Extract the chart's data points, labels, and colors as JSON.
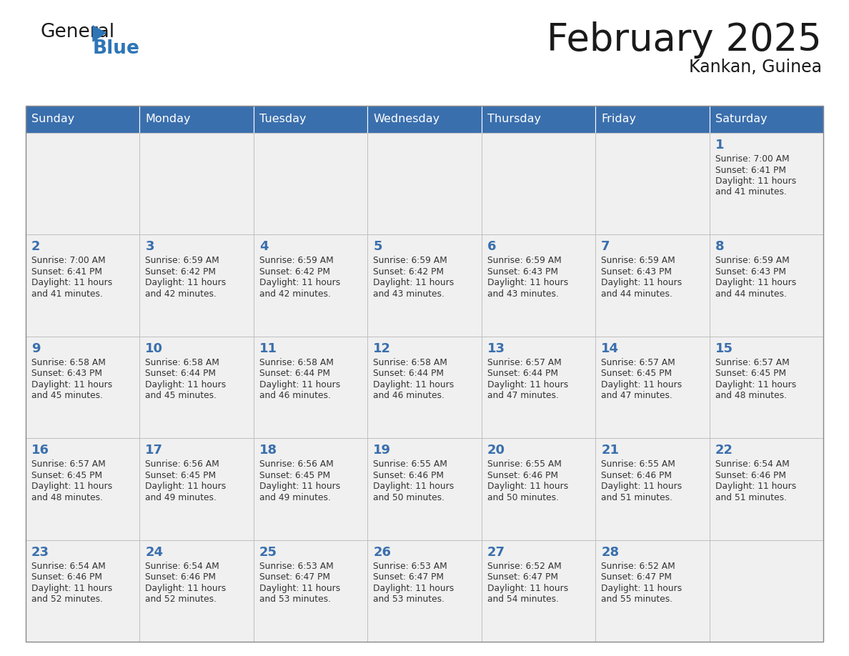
{
  "title": "February 2025",
  "subtitle": "Kankan, Guinea",
  "header_color": "#3a6fad",
  "header_text_color": "#ffffff",
  "cell_bg_color": "#f0f0f0",
  "day_number_color": "#3a6fad",
  "info_text_color": "#333333",
  "border_color": "#bbbbbb",
  "days_of_week": [
    "Sunday",
    "Monday",
    "Tuesday",
    "Wednesday",
    "Thursday",
    "Friday",
    "Saturday"
  ],
  "weeks": [
    [
      {
        "day": null,
        "sunrise": null,
        "sunset": null,
        "daylight": null
      },
      {
        "day": null,
        "sunrise": null,
        "sunset": null,
        "daylight": null
      },
      {
        "day": null,
        "sunrise": null,
        "sunset": null,
        "daylight": null
      },
      {
        "day": null,
        "sunrise": null,
        "sunset": null,
        "daylight": null
      },
      {
        "day": null,
        "sunrise": null,
        "sunset": null,
        "daylight": null
      },
      {
        "day": null,
        "sunrise": null,
        "sunset": null,
        "daylight": null
      },
      {
        "day": 1,
        "sunrise": "7:00 AM",
        "sunset": "6:41 PM",
        "daylight": "11 hours\nand 41 minutes."
      }
    ],
    [
      {
        "day": 2,
        "sunrise": "7:00 AM",
        "sunset": "6:41 PM",
        "daylight": "11 hours\nand 41 minutes."
      },
      {
        "day": 3,
        "sunrise": "6:59 AM",
        "sunset": "6:42 PM",
        "daylight": "11 hours\nand 42 minutes."
      },
      {
        "day": 4,
        "sunrise": "6:59 AM",
        "sunset": "6:42 PM",
        "daylight": "11 hours\nand 42 minutes."
      },
      {
        "day": 5,
        "sunrise": "6:59 AM",
        "sunset": "6:42 PM",
        "daylight": "11 hours\nand 43 minutes."
      },
      {
        "day": 6,
        "sunrise": "6:59 AM",
        "sunset": "6:43 PM",
        "daylight": "11 hours\nand 43 minutes."
      },
      {
        "day": 7,
        "sunrise": "6:59 AM",
        "sunset": "6:43 PM",
        "daylight": "11 hours\nand 44 minutes."
      },
      {
        "day": 8,
        "sunrise": "6:59 AM",
        "sunset": "6:43 PM",
        "daylight": "11 hours\nand 44 minutes."
      }
    ],
    [
      {
        "day": 9,
        "sunrise": "6:58 AM",
        "sunset": "6:43 PM",
        "daylight": "11 hours\nand 45 minutes."
      },
      {
        "day": 10,
        "sunrise": "6:58 AM",
        "sunset": "6:44 PM",
        "daylight": "11 hours\nand 45 minutes."
      },
      {
        "day": 11,
        "sunrise": "6:58 AM",
        "sunset": "6:44 PM",
        "daylight": "11 hours\nand 46 minutes."
      },
      {
        "day": 12,
        "sunrise": "6:58 AM",
        "sunset": "6:44 PM",
        "daylight": "11 hours\nand 46 minutes."
      },
      {
        "day": 13,
        "sunrise": "6:57 AM",
        "sunset": "6:44 PM",
        "daylight": "11 hours\nand 47 minutes."
      },
      {
        "day": 14,
        "sunrise": "6:57 AM",
        "sunset": "6:45 PM",
        "daylight": "11 hours\nand 47 minutes."
      },
      {
        "day": 15,
        "sunrise": "6:57 AM",
        "sunset": "6:45 PM",
        "daylight": "11 hours\nand 48 minutes."
      }
    ],
    [
      {
        "day": 16,
        "sunrise": "6:57 AM",
        "sunset": "6:45 PM",
        "daylight": "11 hours\nand 48 minutes."
      },
      {
        "day": 17,
        "sunrise": "6:56 AM",
        "sunset": "6:45 PM",
        "daylight": "11 hours\nand 49 minutes."
      },
      {
        "day": 18,
        "sunrise": "6:56 AM",
        "sunset": "6:45 PM",
        "daylight": "11 hours\nand 49 minutes."
      },
      {
        "day": 19,
        "sunrise": "6:55 AM",
        "sunset": "6:46 PM",
        "daylight": "11 hours\nand 50 minutes."
      },
      {
        "day": 20,
        "sunrise": "6:55 AM",
        "sunset": "6:46 PM",
        "daylight": "11 hours\nand 50 minutes."
      },
      {
        "day": 21,
        "sunrise": "6:55 AM",
        "sunset": "6:46 PM",
        "daylight": "11 hours\nand 51 minutes."
      },
      {
        "day": 22,
        "sunrise": "6:54 AM",
        "sunset": "6:46 PM",
        "daylight": "11 hours\nand 51 minutes."
      }
    ],
    [
      {
        "day": 23,
        "sunrise": "6:54 AM",
        "sunset": "6:46 PM",
        "daylight": "11 hours\nand 52 minutes."
      },
      {
        "day": 24,
        "sunrise": "6:54 AM",
        "sunset": "6:46 PM",
        "daylight": "11 hours\nand 52 minutes."
      },
      {
        "day": 25,
        "sunrise": "6:53 AM",
        "sunset": "6:47 PM",
        "daylight": "11 hours\nand 53 minutes."
      },
      {
        "day": 26,
        "sunrise": "6:53 AM",
        "sunset": "6:47 PM",
        "daylight": "11 hours\nand 53 minutes."
      },
      {
        "day": 27,
        "sunrise": "6:52 AM",
        "sunset": "6:47 PM",
        "daylight": "11 hours\nand 54 minutes."
      },
      {
        "day": 28,
        "sunrise": "6:52 AM",
        "sunset": "6:47 PM",
        "daylight": "11 hours\nand 55 minutes."
      },
      {
        "day": null,
        "sunrise": null,
        "sunset": null,
        "daylight": null
      }
    ]
  ]
}
